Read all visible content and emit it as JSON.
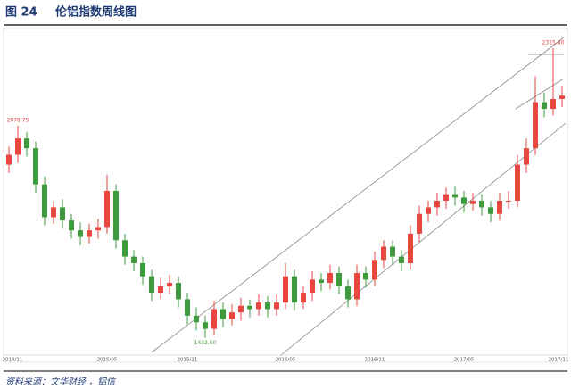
{
  "chart_data": {
    "type": "candlestick",
    "figure_label": "图 24",
    "title": "伦铝指数周线图",
    "source": "资料来源：文华财经 ，铝信",
    "categories": [
      "2014/11",
      null,
      null,
      null,
      null,
      null,
      null,
      null,
      null,
      null,
      null,
      "2015/05",
      null,
      null,
      null,
      null,
      null,
      null,
      null,
      null,
      "2015/11",
      null,
      null,
      null,
      null,
      null,
      null,
      null,
      null,
      null,
      null,
      "2016/05",
      null,
      null,
      null,
      null,
      null,
      null,
      null,
      null,
      null,
      "2016/11",
      null,
      null,
      null,
      null,
      null,
      null,
      null,
      null,
      null,
      "2017/05",
      null,
      null,
      null,
      null,
      null,
      null,
      null,
      null,
      null,
      null,
      "2017/11"
    ],
    "open": [
      1960,
      1990,
      2040,
      2010,
      1900,
      1800,
      1830,
      1790,
      1760,
      1740,
      1760,
      1770,
      1880,
      1730,
      1680,
      1660,
      1620,
      1570,
      1590,
      1600,
      1550,
      1500,
      1480,
      1460,
      1520,
      1490,
      1510,
      1530,
      1520,
      1540,
      1520,
      1540,
      1620,
      1540,
      1570,
      1610,
      1600,
      1630,
      1590,
      1550,
      1630,
      1610,
      1670,
      1710,
      1680,
      1660,
      1750,
      1810,
      1830,
      1850,
      1870,
      1860,
      1840,
      1850,
      1830,
      1810,
      1850,
      1850,
      1960,
      2010,
      2150,
      2130,
      2160
    ],
    "high": [
      2015,
      2078.75,
      2060,
      2030,
      1925,
      1850,
      1855,
      1810,
      1785,
      1780,
      1795,
      1930,
      1900,
      1750,
      1700,
      1680,
      1640,
      1615,
      1625,
      1620,
      1570,
      1525,
      1500,
      1545,
      1540,
      1535,
      1555,
      1550,
      1565,
      1560,
      1565,
      1660,
      1640,
      1590,
      1635,
      1630,
      1655,
      1650,
      1610,
      1655,
      1650,
      1695,
      1730,
      1730,
      1700,
      1775,
      1835,
      1850,
      1875,
      1890,
      1895,
      1880,
      1875,
      1870,
      1850,
      1875,
      1880,
      1990,
      2040,
      2230,
      2180,
      2315,
      2200
    ],
    "low": [
      1935,
      1965,
      1985,
      1875,
      1775,
      1780,
      1765,
      1735,
      1715,
      1720,
      1735,
      1750,
      1705,
      1655,
      1635,
      1595,
      1545,
      1550,
      1565,
      1525,
      1475,
      1455,
      1432.5,
      1440,
      1465,
      1470,
      1485,
      1495,
      1500,
      1495,
      1500,
      1520,
      1515,
      1520,
      1545,
      1575,
      1580,
      1565,
      1525,
      1530,
      1585,
      1590,
      1645,
      1655,
      1635,
      1640,
      1725,
      1785,
      1805,
      1825,
      1835,
      1815,
      1820,
      1805,
      1785,
      1790,
      1825,
      1830,
      1935,
      1990,
      2105,
      2110,
      2135
    ],
    "close": [
      1990,
      2040,
      2010,
      1900,
      1800,
      1830,
      1790,
      1760,
      1740,
      1760,
      1770,
      1880,
      1730,
      1680,
      1660,
      1620,
      1570,
      1590,
      1600,
      1550,
      1500,
      1480,
      1460,
      1520,
      1490,
      1510,
      1530,
      1520,
      1540,
      1520,
      1540,
      1620,
      1540,
      1570,
      1610,
      1600,
      1630,
      1590,
      1550,
      1630,
      1610,
      1670,
      1710,
      1680,
      1660,
      1750,
      1810,
      1830,
      1850,
      1870,
      1860,
      1840,
      1850,
      1830,
      1810,
      1850,
      1850,
      1960,
      2010,
      2150,
      2130,
      2160,
      2170
    ],
    "up_color": "#e8463f",
    "down_color": "#3d9b3d",
    "ylim": [
      1380,
      2380
    ],
    "annotations": [
      {
        "label": "2078.75",
        "value": 2078.75,
        "color": "#e8463f"
      },
      {
        "label": "1432.50",
        "value": 1432.5,
        "color": "#3d9b3d"
      },
      {
        "label": "2315.00",
        "value": 2315,
        "color": "#e8463f"
      }
    ]
  }
}
